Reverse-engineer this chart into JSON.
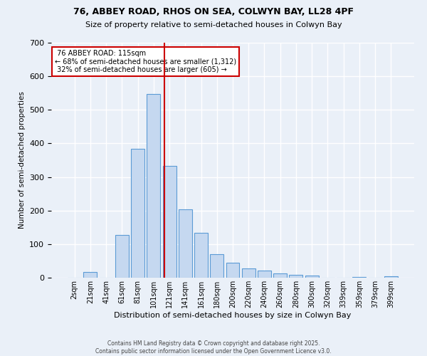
{
  "title1": "76, ABBEY ROAD, RHOS ON SEA, COLWYN BAY, LL28 4PF",
  "title2": "Size of property relative to semi-detached houses in Colwyn Bay",
  "xlabel": "Distribution of semi-detached houses by size in Colwyn Bay",
  "ylabel": "Number of semi-detached properties",
  "categories": [
    "2sqm",
    "21sqm",
    "41sqm",
    "61sqm",
    "81sqm",
    "101sqm",
    "121sqm",
    "141sqm",
    "161sqm",
    "180sqm",
    "200sqm",
    "220sqm",
    "240sqm",
    "260sqm",
    "280sqm",
    "300sqm",
    "320sqm",
    "339sqm",
    "359sqm",
    "379sqm",
    "399sqm"
  ],
  "values": [
    0,
    18,
    0,
    127,
    385,
    547,
    333,
    204,
    133,
    70,
    44,
    27,
    22,
    13,
    9,
    6,
    1,
    0,
    3,
    0,
    5
  ],
  "bar_color": "#c5d8f0",
  "bar_edge_color": "#5b9bd5",
  "bg_color": "#eaf0f8",
  "grid_color": "#ffffff",
  "property_label": "76 ABBEY ROAD: 115sqm",
  "pct_smaller": 68,
  "n_smaller": 1312,
  "pct_larger": 32,
  "n_larger": 605,
  "annotation_box_color": "#ffffff",
  "annotation_border_color": "#cc0000",
  "footer1": "Contains HM Land Registry data © Crown copyright and database right 2025.",
  "footer2": "Contains public sector information licensed under the Open Government Licence v3.0.",
  "ylim": [
    0,
    700
  ],
  "yticks": [
    0,
    100,
    200,
    300,
    400,
    500,
    600,
    700
  ],
  "vline_pos": 5.7
}
